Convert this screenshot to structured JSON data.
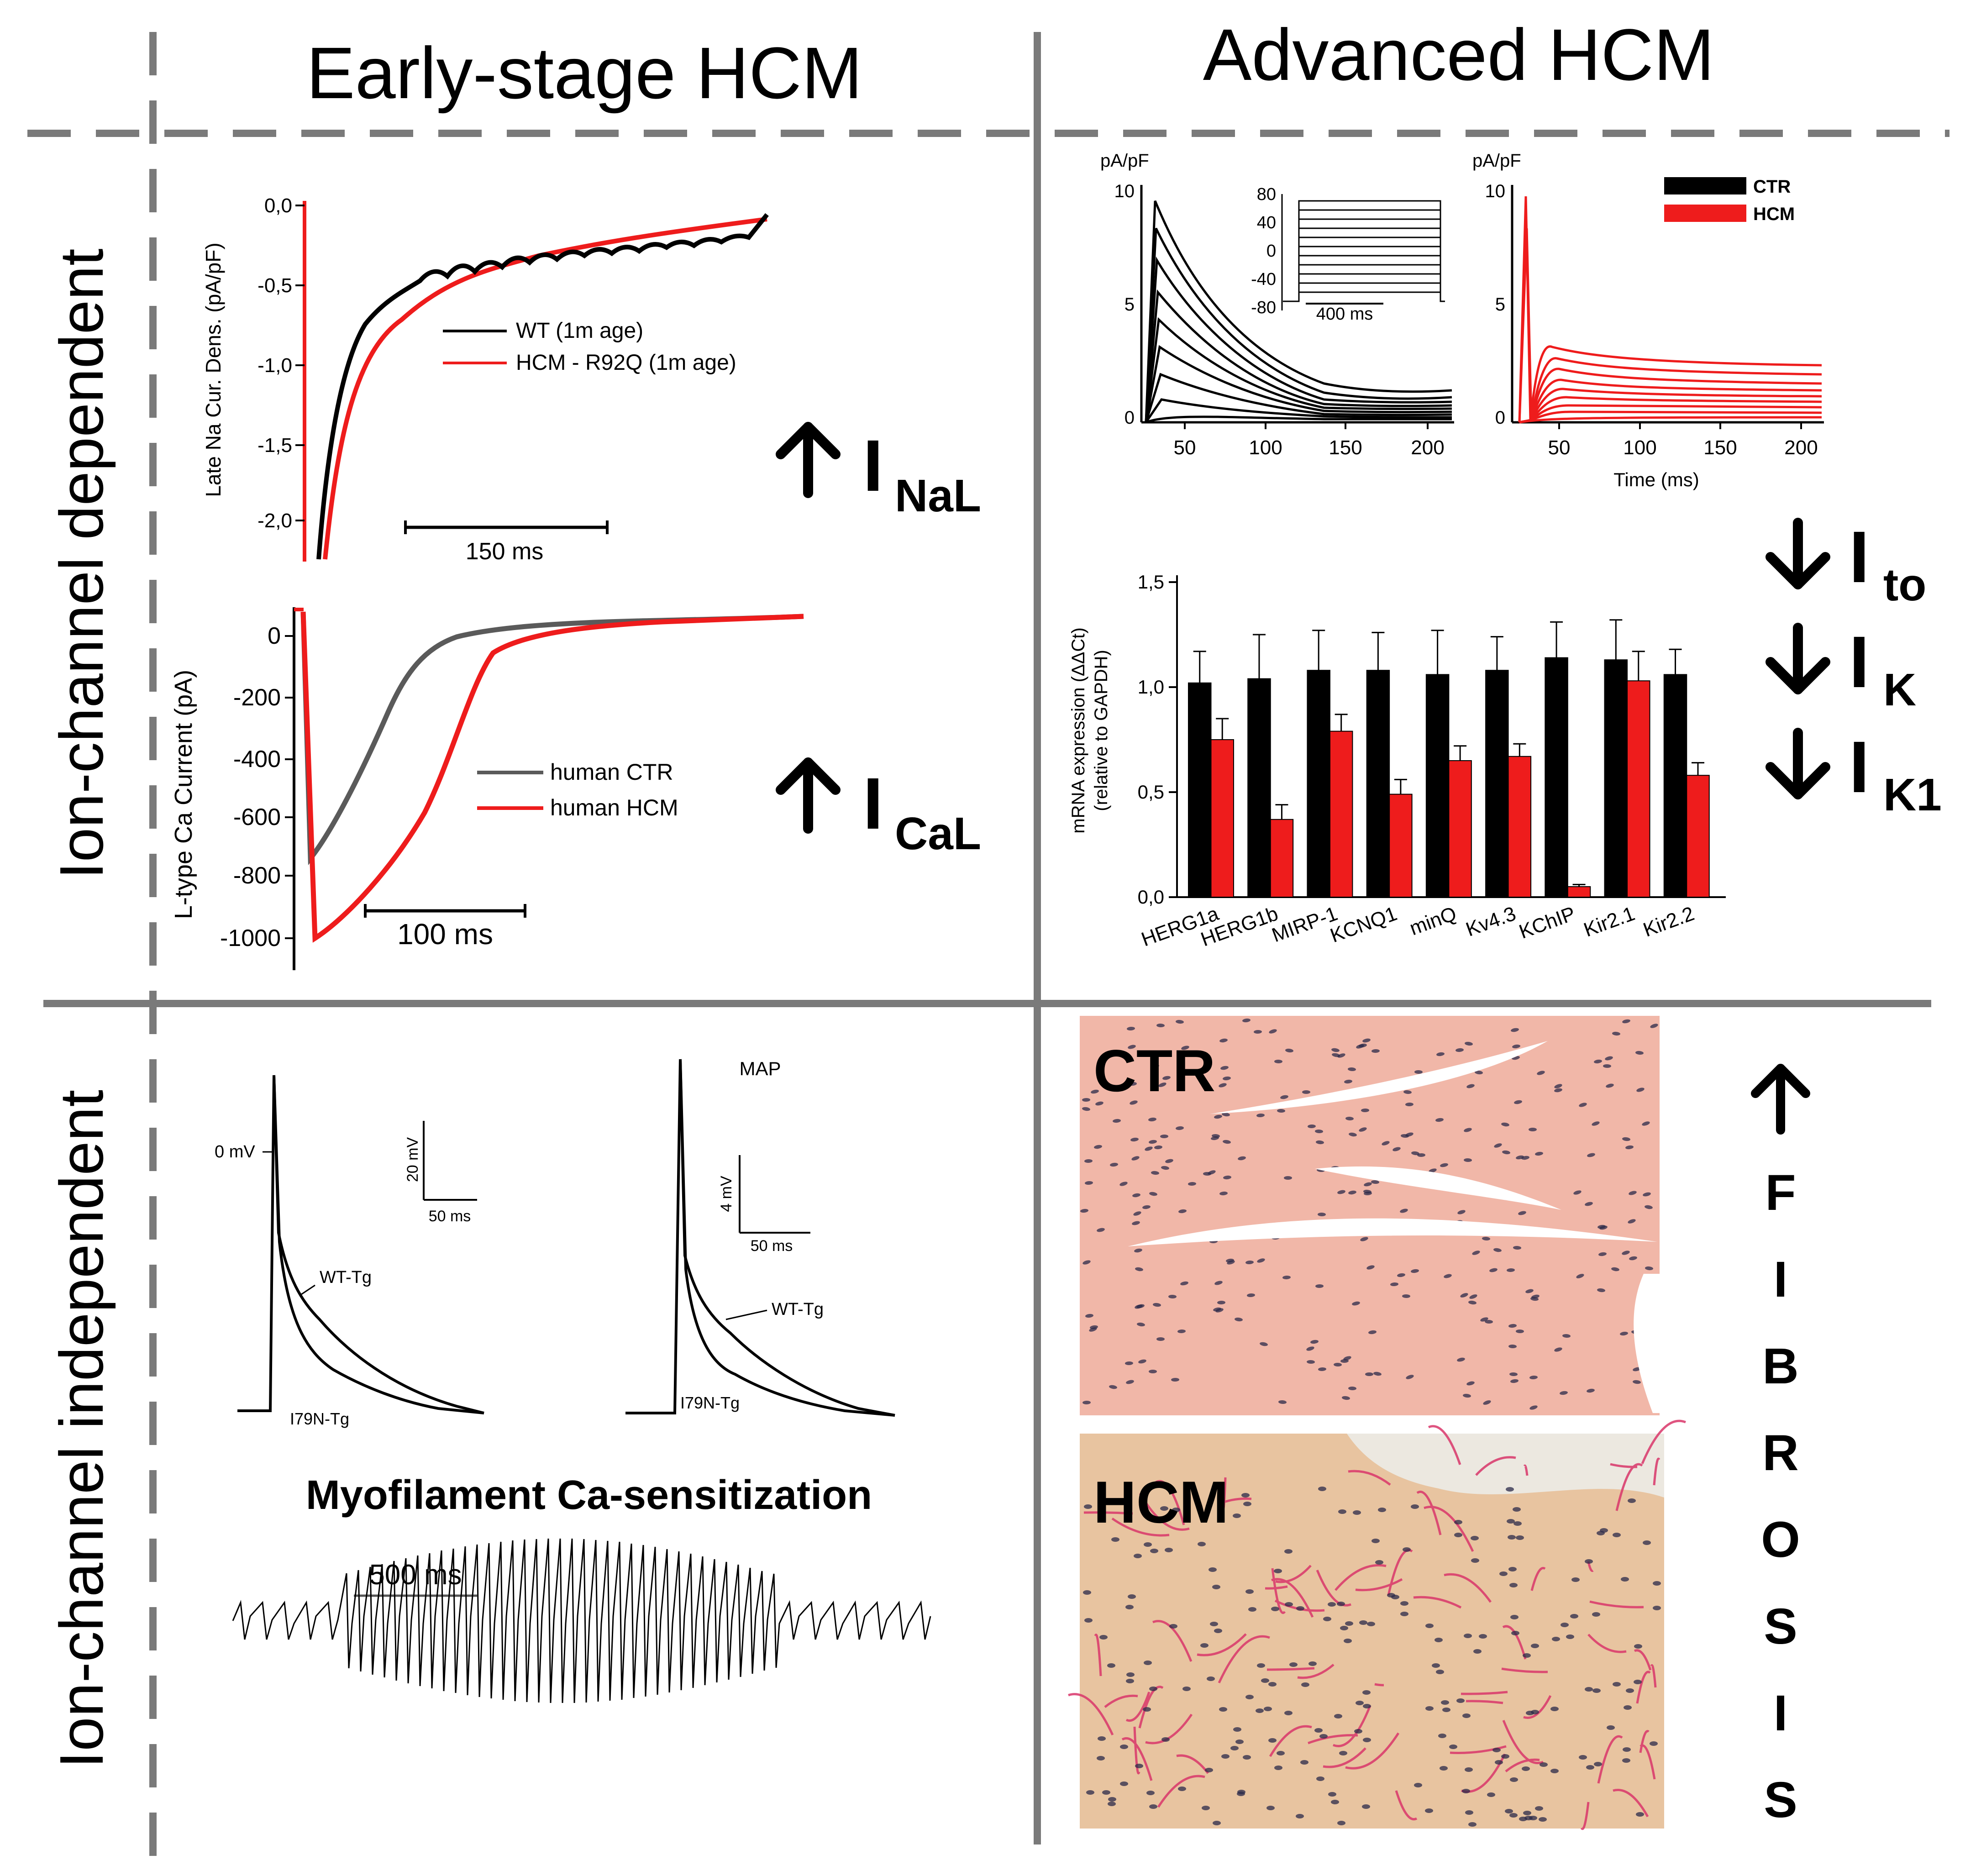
{
  "headers": {
    "early": "Early-stage HCM",
    "advanced": "Advanced HCM"
  },
  "row_labels": {
    "dependent": "Ion-channel dependent",
    "independent": "Ion-channel independent"
  },
  "colors": {
    "black": "#000000",
    "red": "#ee1c1c",
    "gray": "#5a5a5a",
    "grid": "#7a7a7a",
    "tissue": "#f1b7a8",
    "tissue_hcm": "#e8c4a0",
    "tissue_nuclei": "#2b2a4a",
    "collagen": "#d9366a"
  },
  "icons": {
    "up": "up-arrow-icon",
    "down": "down-arrow-icon"
  },
  "panel_late_na": {
    "ylabel": "Late Na Cur. Dens. (pA/pF)",
    "yticks": [
      "0,0",
      "-0,5",
      "-1,0",
      "-1,5",
      "-2,0"
    ],
    "legend": [
      "WT (1m age)",
      "HCM - R92Q (1m age)"
    ],
    "scalebar": "150 ms",
    "indicator": {
      "symbol": "I",
      "sub": "NaL"
    }
  },
  "panel_ca": {
    "ylabel": "L-type Ca Current (pA)",
    "yticks": [
      "0",
      "-200",
      "-400",
      "-600",
      "-800",
      "-1000"
    ],
    "legend": [
      "human CTR",
      "human HCM"
    ],
    "scalebar": "100 ms",
    "indicator": {
      "symbol": "I",
      "sub": "CaL"
    }
  },
  "panel_ito": {
    "unit": "pA/pF",
    "yticks": [
      "10",
      "5",
      "0"
    ],
    "xticks": [
      "50",
      "100",
      "150",
      "200"
    ],
    "xlabel": "Time (ms)",
    "inset_yticks": [
      "80",
      "40",
      "0",
      "-40",
      "-80"
    ],
    "inset_scale": "400 ms",
    "legend": [
      "CTR",
      "HCM"
    ]
  },
  "k_indicators": [
    {
      "symbol": "I",
      "sub": "to"
    },
    {
      "symbol": "I",
      "sub": "K"
    },
    {
      "symbol": "I",
      "sub": "K1"
    }
  ],
  "chart_data": {
    "type": "bar",
    "title": "",
    "xlabel": "",
    "ylabel": "mRNA expression (ΔΔCt) (relative to GAPDH)",
    "ylabel_lines": [
      "mRNA expression (ΔΔCt)",
      "(relative to GAPDH)"
    ],
    "ylim": [
      0,
      1.5
    ],
    "yticks": [
      "0,0",
      "0,5",
      "1,0",
      "1,5"
    ],
    "categories": [
      "HERG1a",
      "HERG1b",
      "MIRP-1",
      "KCNQ1",
      "minQ",
      "Kv4.3",
      "KChIP",
      "Kir2.1",
      "Kir2.2"
    ],
    "series": [
      {
        "name": "CTR",
        "color": "#000000",
        "values": [
          1.02,
          1.04,
          1.08,
          1.08,
          1.06,
          1.08,
          1.14,
          1.13,
          1.06
        ],
        "errors": [
          0.15,
          0.21,
          0.19,
          0.18,
          0.21,
          0.16,
          0.17,
          0.19,
          0.12
        ]
      },
      {
        "name": "HCM",
        "color": "#ee1c1c",
        "values": [
          0.75,
          0.37,
          0.79,
          0.49,
          0.65,
          0.67,
          0.05,
          1.03,
          0.58
        ],
        "errors": [
          0.1,
          0.07,
          0.08,
          0.07,
          0.07,
          0.06,
          0.01,
          0.14,
          0.06
        ]
      }
    ]
  },
  "panel_map": {
    "zero_label": "0 mV",
    "scale1_v": "20 mV",
    "scale1_t": "50 ms",
    "scale2_v": "4 mV",
    "scale2_t": "50 ms",
    "title2": "MAP",
    "trace_labels": [
      "WT-Tg",
      "I79N-Tg"
    ],
    "caption": "Myofilament Ca-sensitization",
    "ecg_scale": "500 ms"
  },
  "histology": {
    "ctr_label": "CTR",
    "hcm_label": "HCM"
  },
  "fibrosis": {
    "letters": [
      "F",
      "I",
      "B",
      "R",
      "O",
      "S",
      "I",
      "S"
    ]
  }
}
